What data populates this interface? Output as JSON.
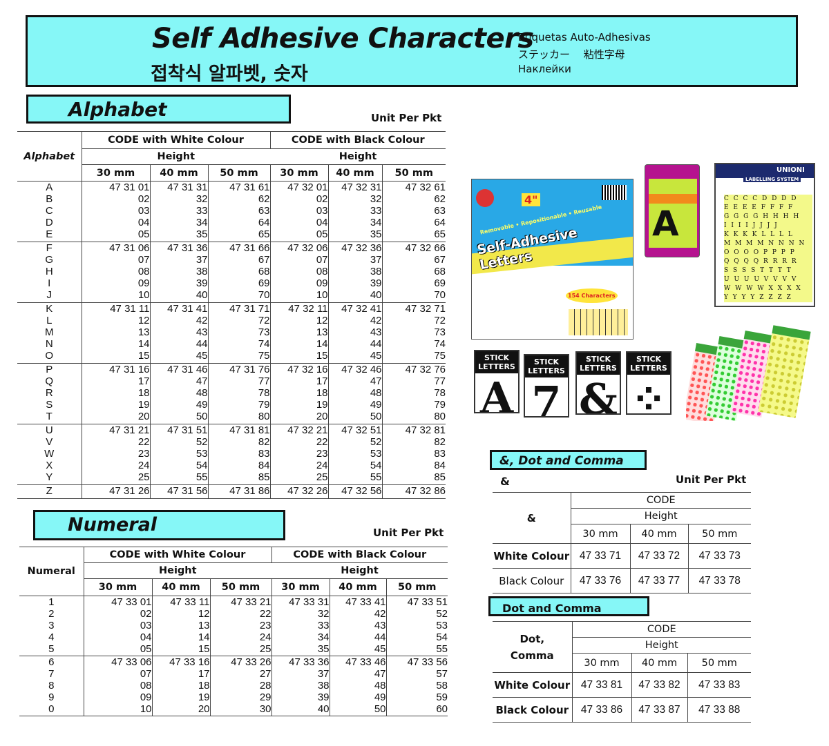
{
  "header": {
    "title": "Self Adhesive Characters",
    "title_korean": "접착식 알파벳, 숫자",
    "title_spanish": "Etiquetas Auto-Adhesivas",
    "title_japanese": "ステッカー　 粘性字母",
    "title_russian": "Наклейки",
    "bg_color": "#86f7f7"
  },
  "alphabet": {
    "section_title": "Alphabet",
    "unit_label": "Unit Per Pkt",
    "corner_label": "Alphabet",
    "group_headers": [
      "CODE with White Colour",
      "CODE with Black Colour"
    ],
    "height_label": "Height",
    "sizes": [
      "30 mm",
      "40 mm",
      "50 mm",
      "30 mm",
      "40 mm",
      "50 mm"
    ],
    "groups": [
      {
        "labels": [
          "A",
          "B",
          "C",
          "D",
          "E"
        ],
        "cols": [
          [
            "47 31 01",
            "02",
            "03",
            "04",
            "05"
          ],
          [
            "47 31 31",
            "32",
            "33",
            "34",
            "35"
          ],
          [
            "47 31 61",
            "62",
            "63",
            "64",
            "65"
          ],
          [
            "47 32 01",
            "02",
            "03",
            "04",
            "05"
          ],
          [
            "47 32 31",
            "32",
            "33",
            "34",
            "35"
          ],
          [
            "47 32 61",
            "62",
            "63",
            "64",
            "65"
          ]
        ]
      },
      {
        "labels": [
          "F",
          "G",
          "H",
          "I",
          "J"
        ],
        "cols": [
          [
            "47 31 06",
            "07",
            "08",
            "09",
            "10"
          ],
          [
            "47 31 36",
            "37",
            "38",
            "39",
            "40"
          ],
          [
            "47 31 66",
            "67",
            "68",
            "69",
            "70"
          ],
          [
            "47 32 06",
            "07",
            "08",
            "09",
            "10"
          ],
          [
            "47 32 36",
            "37",
            "38",
            "39",
            "40"
          ],
          [
            "47 32 66",
            "67",
            "68",
            "69",
            "70"
          ]
        ]
      },
      {
        "labels": [
          "K",
          "L",
          "M",
          "N",
          "O"
        ],
        "cols": [
          [
            "47 31 11",
            "12",
            "13",
            "14",
            "15"
          ],
          [
            "47 31 41",
            "42",
            "43",
            "44",
            "45"
          ],
          [
            "47 31 71",
            "72",
            "73",
            "74",
            "75"
          ],
          [
            "47 32 11",
            "12",
            "13",
            "14",
            "15"
          ],
          [
            "47 32 41",
            "42",
            "43",
            "44",
            "45"
          ],
          [
            "47 32 71",
            "72",
            "73",
            "74",
            "75"
          ]
        ]
      },
      {
        "labels": [
          "P",
          "Q",
          "R",
          "S",
          "T"
        ],
        "cols": [
          [
            "47 31 16",
            "17",
            "18",
            "19",
            "20"
          ],
          [
            "47 31 46",
            "47",
            "48",
            "49",
            "50"
          ],
          [
            "47 31 76",
            "77",
            "78",
            "79",
            "80"
          ],
          [
            "47 32 16",
            "17",
            "18",
            "19",
            "20"
          ],
          [
            "47 32 46",
            "47",
            "48",
            "49",
            "50"
          ],
          [
            "47 32 76",
            "77",
            "78",
            "79",
            "80"
          ]
        ]
      },
      {
        "labels": [
          "U",
          "V",
          "W",
          "X",
          "Y"
        ],
        "cols": [
          [
            "47 31 21",
            "22",
            "23",
            "24",
            "25"
          ],
          [
            "47 31 51",
            "52",
            "53",
            "54",
            "55"
          ],
          [
            "47 31 81",
            "82",
            "83",
            "84",
            "85"
          ],
          [
            "47 32 21",
            "22",
            "23",
            "24",
            "25"
          ],
          [
            "47 32 51",
            "52",
            "53",
            "54",
            "55"
          ],
          [
            "47 32 81",
            "82",
            "83",
            "84",
            "85"
          ]
        ]
      },
      {
        "labels": [
          "Z"
        ],
        "cols": [
          [
            "47 31 26"
          ],
          [
            "47 31 56"
          ],
          [
            "47 31 86"
          ],
          [
            "47 32 26"
          ],
          [
            "47 32 56"
          ],
          [
            "47 32 86"
          ]
        ]
      }
    ]
  },
  "numeral": {
    "section_title": "Numeral",
    "unit_label": "Unit Per Pkt",
    "corner_label": "Numeral",
    "group_headers": [
      "CODE with  White Colour",
      "CODE with Black Colour"
    ],
    "height_label": "Height",
    "sizes": [
      "30 mm",
      "40 mm",
      "50 mm",
      "30 mm",
      "40 mm",
      "50 mm"
    ],
    "groups": [
      {
        "labels": [
          "1",
          "2",
          "3",
          "4",
          "5"
        ],
        "cols": [
          [
            "47 33 01",
            "02",
            "03",
            "04",
            "05"
          ],
          [
            "47 33 11",
            "12",
            "13",
            "14",
            "15"
          ],
          [
            "47 33 21",
            "22",
            "23",
            "24",
            "25"
          ],
          [
            "47 33 31",
            "32",
            "33",
            "34",
            "35"
          ],
          [
            "47 33 41",
            "42",
            "43",
            "44",
            "45"
          ],
          [
            "47 33 51",
            "52",
            "53",
            "54",
            "55"
          ]
        ]
      },
      {
        "labels": [
          "6",
          "7",
          "8",
          "9",
          "0"
        ],
        "cols": [
          [
            "47 33 06",
            "07",
            "08",
            "09",
            "10"
          ],
          [
            "47 33 16",
            "17",
            "18",
            "19",
            "20"
          ],
          [
            "47 33 26",
            "27",
            "28",
            "29",
            "30"
          ],
          [
            "47 33 36",
            "37",
            "38",
            "39",
            "40"
          ],
          [
            "47 33 46",
            "47",
            "48",
            "49",
            "50"
          ],
          [
            "47 33 56",
            "57",
            "58",
            "59",
            "60"
          ]
        ]
      }
    ]
  },
  "ampersand": {
    "section_title": "&, Dot and Comma",
    "sub_label": "&",
    "unit_label": "Unit Per Pkt",
    "corner_label": "&",
    "code_label": "CODE",
    "height_label": "Height",
    "sizes": [
      "30 mm",
      "40 mm",
      "50 mm"
    ],
    "rows": [
      {
        "label": "White Colour",
        "codes": [
          "47 33 71",
          "47 33 72",
          "47 33 73"
        ]
      },
      {
        "label": "Black Colour",
        "codes": [
          "47 33 76",
          "47 33 77",
          "47 33 78"
        ]
      }
    ]
  },
  "dot_comma": {
    "section_title": "Dot and Comma",
    "corner_label_1": "Dot,",
    "corner_label_2": "Comma",
    "code_label": "CODE",
    "height_label": "Height",
    "sizes": [
      "30 mm",
      "40 mm",
      "50 mm"
    ],
    "rows": [
      {
        "label": "White Colour",
        "codes": [
          "47 33 81",
          "47 33 82",
          "47 33 83"
        ]
      },
      {
        "label": "Black Colour",
        "codes": [
          "47 33 86",
          "47 33 87",
          "47 33 88"
        ]
      }
    ]
  },
  "product_images": {
    "pacon_pack": {
      "size_badge": "4\"",
      "tagline": "Removable • Repositionable • Reusable",
      "title": "Self-Adhesive Letters",
      "count": "154 Characters"
    },
    "black_white_pack": {
      "letter": "A"
    },
    "unioni_sheet": {
      "brand": "UNIONI",
      "subtitle": "LABELLING SYSTEM",
      "letters": [
        "C C C C D D D D",
        "E E E E F F F F",
        "G G G G H H H H",
        "I I I I J J J J",
        "K K K K L L L L",
        "M M M M N N N N",
        "O O O O P P P P",
        "Q Q Q Q R R R R",
        "S S S S T T T T",
        "U U U U V V V V",
        "W W W W X X X X",
        "Y Y Y Y Z Z Z Z"
      ]
    },
    "stick_letters": {
      "label_1": "STICK",
      "label_2": "LETTERS",
      "glyphs": [
        "A",
        "7",
        "&",
        "⁘"
      ]
    }
  }
}
